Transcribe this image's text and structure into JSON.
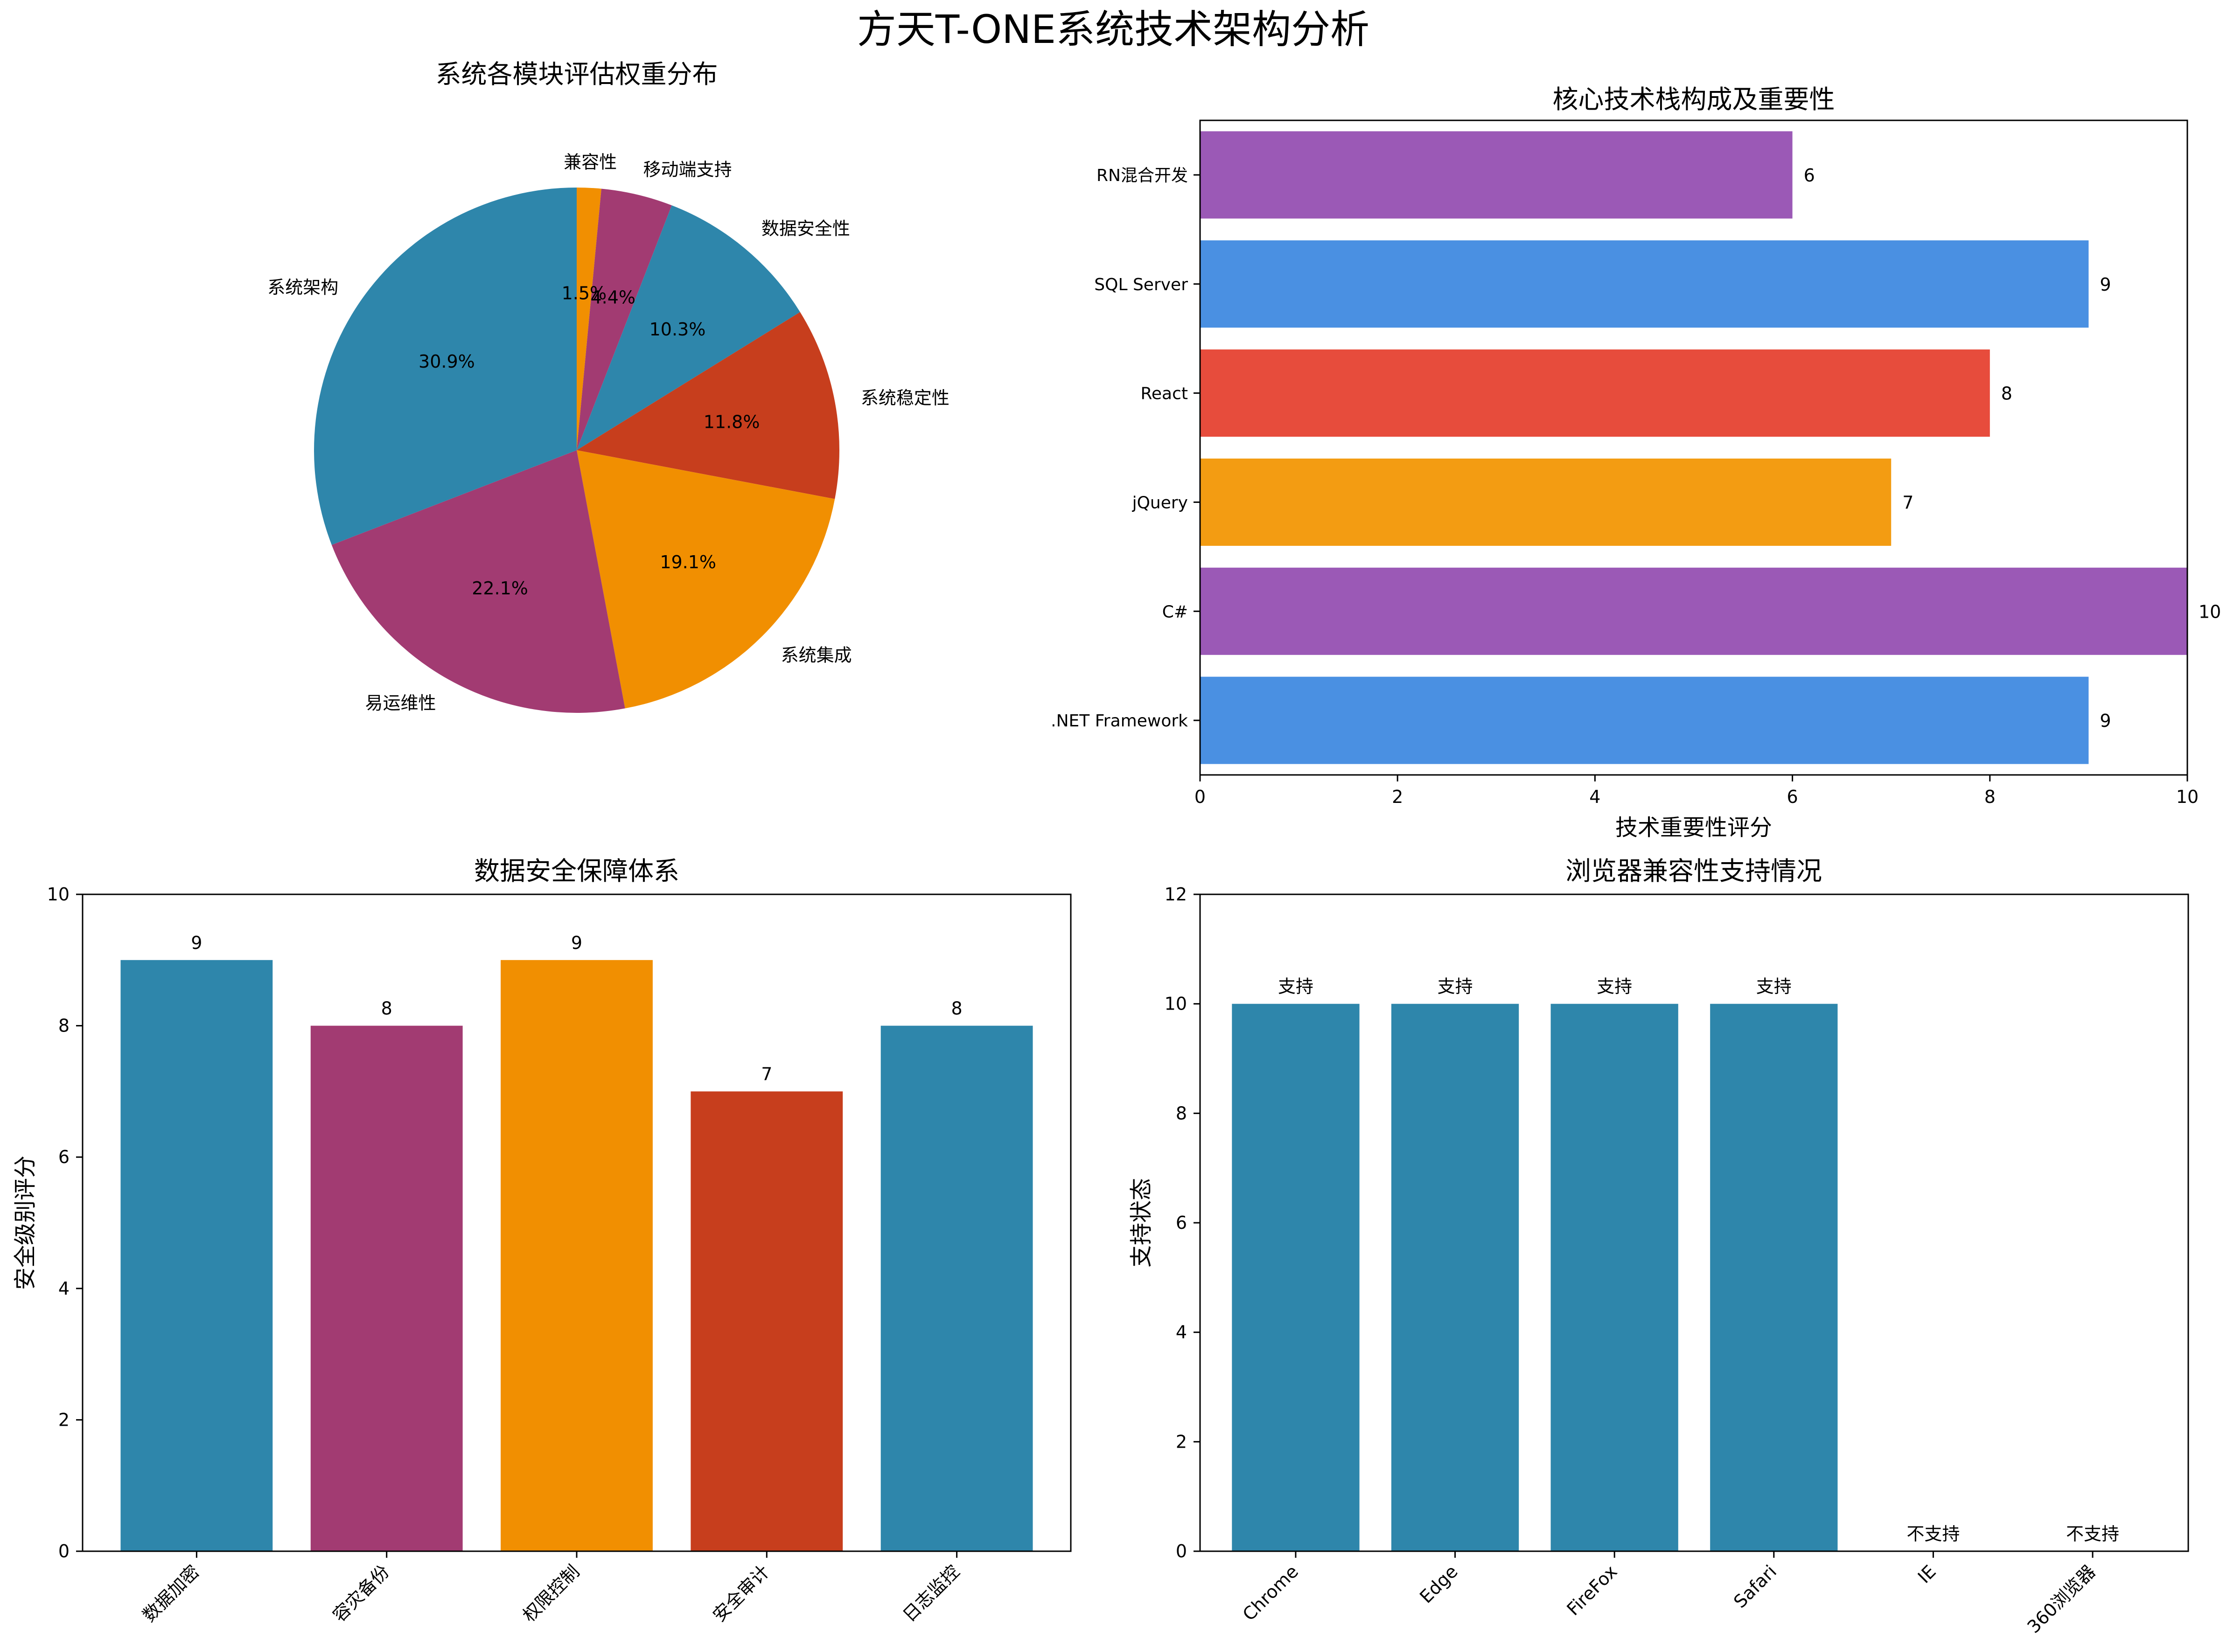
{
  "figure": {
    "title": "方天T-ONE系统技术架构分析"
  },
  "colors": {
    "blue_teal": "#2E86AB",
    "magenta": "#A23B72",
    "orange": "#F18F01",
    "red_orange": "#C73E1D",
    "purple": "#9B59B6",
    "blue": "#4A90E2",
    "red": "#E74C3C",
    "amber": "#F39C12"
  },
  "chart_data": [
    {
      "type": "pie",
      "title": "系统各模块评估权重分布",
      "labels": [
        "兼容性",
        "移动端支持",
        "数据安全性",
        "系统稳定性",
        "系统集成",
        "易运维性",
        "系统架构"
      ],
      "values": [
        1.5,
        4.4,
        10.3,
        11.8,
        19.1,
        22.1,
        30.9
      ],
      "pct_labels": [
        "1.5%",
        "4.4%",
        "10.3%",
        "11.8%",
        "19.1%",
        "22.1%",
        "30.9%"
      ],
      "colors": [
        "#F18F01",
        "#A23B72",
        "#2E86AB",
        "#C73E1D",
        "#F18F01",
        "#A23B72",
        "#2E86AB"
      ],
      "start_angle_deg": 90,
      "direction": "clockwise"
    },
    {
      "type": "bar",
      "orientation": "horizontal",
      "title": "核心技术栈构成及重要性",
      "categories": [
        ".NET Framework",
        "C#",
        "jQuery",
        "React",
        "SQL Server",
        "RN混合开发"
      ],
      "values": [
        9,
        10,
        7,
        8,
        9,
        6
      ],
      "value_labels": [
        "9",
        "10",
        "7",
        "8",
        "9",
        "6"
      ],
      "colors": [
        "#4A90E2",
        "#9B59B6",
        "#F39C12",
        "#E74C3C",
        "#4A90E2",
        "#9B59B6"
      ],
      "xlabel": "技术重要性评分",
      "ylabel": "",
      "xlim": [
        0,
        10
      ],
      "xticks": [
        "0",
        "2",
        "4",
        "6",
        "8",
        "10"
      ]
    },
    {
      "type": "bar",
      "title": "数据安全保障体系",
      "categories": [
        "数据加密",
        "容灾备份",
        "权限控制",
        "安全审计",
        "日志监控"
      ],
      "values": [
        9,
        8,
        9,
        7,
        8
      ],
      "value_labels": [
        "9",
        "8",
        "9",
        "7",
        "8"
      ],
      "colors": [
        "#2E86AB",
        "#A23B72",
        "#F18F01",
        "#C73E1D",
        "#2E86AB"
      ],
      "xlabel": "",
      "ylabel": "安全级别评分",
      "ylim": [
        0,
        10
      ],
      "yticks": [
        "0",
        "2",
        "4",
        "6",
        "8",
        "10"
      ]
    },
    {
      "type": "bar",
      "title": "浏览器兼容性支持情况",
      "categories": [
        "Chrome",
        "Edge",
        "FireFox",
        "Safari",
        "IE",
        "360浏览器"
      ],
      "values": [
        10,
        10,
        10,
        10,
        0,
        0
      ],
      "value_labels": [
        "支持",
        "支持",
        "支持",
        "支持",
        "不支持",
        "不支持"
      ],
      "colors": [
        "#2E86AB",
        "#2E86AB",
        "#2E86AB",
        "#2E86AB",
        "#2E86AB",
        "#2E86AB"
      ],
      "xlabel": "",
      "ylabel": "支持状态",
      "ylim": [
        0,
        12
      ],
      "yticks": [
        "0",
        "2",
        "4",
        "6",
        "8",
        "10",
        "12"
      ]
    }
  ]
}
